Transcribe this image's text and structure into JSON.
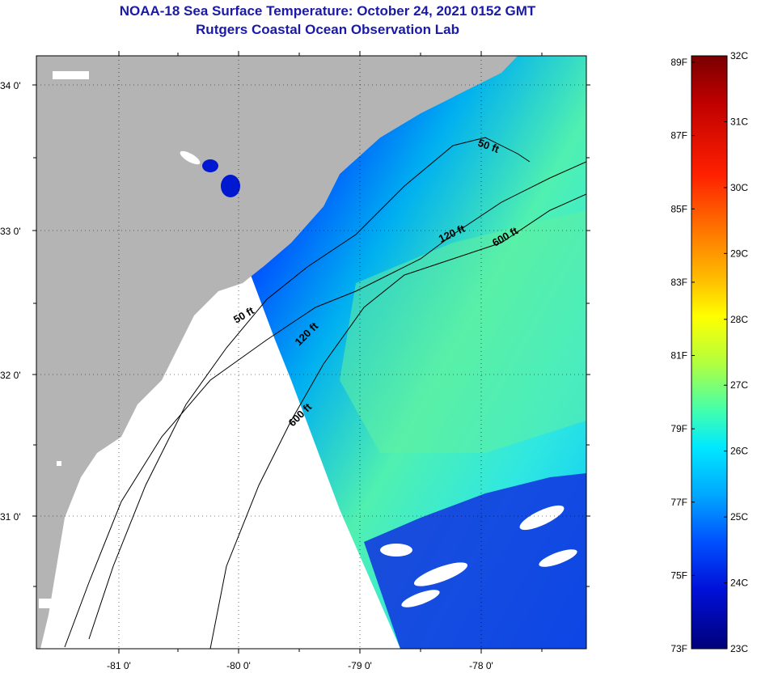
{
  "title": {
    "line1": "NOAA-18 Sea Surface Temperature:  October 24, 2021 0152 GMT",
    "line2": "Rutgers Coastal Ocean Observation Lab"
  },
  "map": {
    "lat_ticks": [
      "34 0'",
      "33 0'",
      "32 0'",
      "31 0'"
    ],
    "lon_ticks": [
      "-81 0'",
      "-80 0'",
      "-79 0'",
      "-78 0'"
    ],
    "contours": [
      {
        "label": "50 ft"
      },
      {
        "label": "120 ft"
      },
      {
        "label": "600 ft"
      },
      {
        "label": "50 ft"
      },
      {
        "label": "120 ft"
      },
      {
        "label": "600 ft"
      }
    ]
  },
  "colorbar": {
    "fahrenheit": [
      "89F",
      "87F",
      "85F",
      "83F",
      "81F",
      "79F",
      "77F",
      "75F",
      "73F"
    ],
    "celsius": [
      "32C",
      "31C",
      "30C",
      "29C",
      "28C",
      "27C",
      "26C",
      "25C",
      "24C",
      "23C"
    ],
    "colors": [
      "#7a0000",
      "#c00000",
      "#ff2000",
      "#ff7a00",
      "#ffc000",
      "#ffff00",
      "#b0ff40",
      "#40ffb0",
      "#00e8ff",
      "#00a8ff",
      "#0050ff",
      "#0010d8",
      "#00007a"
    ]
  },
  "colors": {
    "land": "#b4b4b4",
    "no_data": "#ffffff",
    "title": "#1a1aa6"
  }
}
